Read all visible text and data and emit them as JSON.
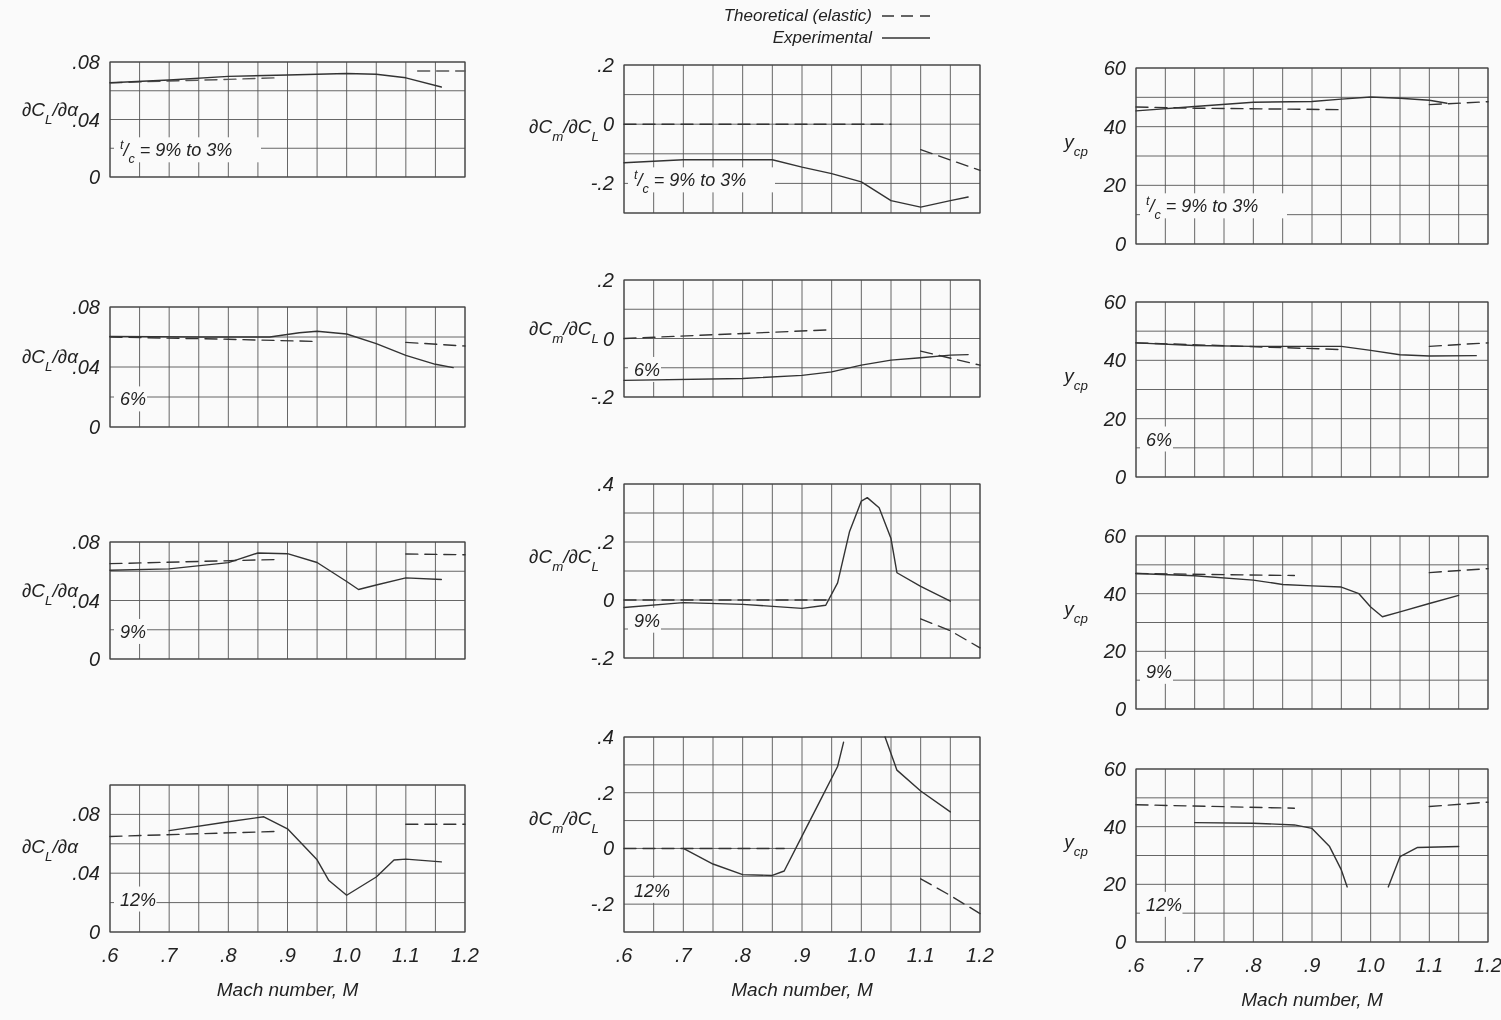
{
  "chart_data": [
    {
      "type": "line",
      "ylabel": "∂C$_{L}$/∂α",
      "xlim": [
        0.6,
        1.2
      ],
      "ylim": [
        0,
        0.08
      ],
      "tick_labels": "y",
      "grid": true,
      "annotations": [
        "$^{t}$/$_{c}$ = 9% to 3%"
      ],
      "xticks": [
        {
          "value": 0.6,
          "label": null
        },
        {
          "value": 0.65,
          "label": null
        },
        {
          "value": 0.7,
          "label": null
        },
        {
          "value": 0.75,
          "label": null
        },
        {
          "value": 0.8,
          "label": null
        },
        {
          "value": 0.85,
          "label": null
        },
        {
          "value": 0.9,
          "label": null
        },
        {
          "value": 0.95,
          "label": null
        },
        {
          "value": 1.0,
          "label": null
        },
        {
          "value": 1.05,
          "label": null
        },
        {
          "value": 1.1,
          "label": null
        },
        {
          "value": 1.15,
          "label": null
        },
        {
          "value": 1.2,
          "label": null
        }
      ],
      "yticks": [
        0,
        {
          "value": 0.02,
          "label": null
        },
        {
          "value": 0.04,
          "label": ".04"
        },
        {
          "value": 0.06,
          "label": null
        },
        {
          "value": 0.08,
          "label": ".08"
        }
      ],
      "series": [
        {
          "color": "#555555",
          "line_style": "dashed",
          "x": [
            0.6,
            0.7,
            0.8,
            0.88,
            1.0,
            1.12,
            1.2
          ],
          "values": [
            0.0655,
            0.0668,
            0.0679,
            0.069,
            null,
            0.0737,
            0.0737
          ]
        },
        {
          "color": "#333333",
          "line_style": "solid",
          "x": [
            0.6,
            0.7,
            0.8,
            0.9,
            1.0,
            1.05,
            1.1,
            1.16
          ],
          "values": [
            0.0656,
            0.0675,
            0.07,
            0.071,
            0.072,
            0.0715,
            0.069,
            0.0626
          ]
        }
      ]
    },
    {
      "type": "line",
      "ylabel": "∂C$_{m}$/∂C$_{L}$",
      "xlim": [
        0.6,
        1.2
      ],
      "ylim": [
        -0.3,
        0.2
      ],
      "tick_labels": "y",
      "grid": true,
      "legend": "top right",
      "annotations": [
        "$^{t}$/$_{c}$ = 9% to 3%"
      ],
      "xticks": [
        {
          "value": 0.6,
          "label": null
        },
        {
          "value": 0.65,
          "label": null
        },
        {
          "value": 0.7,
          "label": null
        },
        {
          "value": 0.75,
          "label": null
        },
        {
          "value": 0.8,
          "label": null
        },
        {
          "value": 0.85,
          "label": null
        },
        {
          "value": 0.9,
          "label": null
        },
        {
          "value": 0.95,
          "label": null
        },
        {
          "value": 1.0,
          "label": null
        },
        {
          "value": 1.05,
          "label": null
        },
        {
          "value": 1.1,
          "label": null
        },
        {
          "value": 1.15,
          "label": null
        },
        {
          "value": 1.2,
          "label": null
        }
      ],
      "yticks": [
        {
          "value": -0.3,
          "label": null
        },
        {
          "value": -0.2,
          "label": "-.2"
        },
        {
          "value": -0.1,
          "label": null
        },
        0,
        {
          "value": 0.1,
          "label": null
        },
        {
          "value": 0.2,
          "label": ".2"
        }
      ],
      "series": [
        {
          "name": "Theoretical (elastic)",
          "color": "#333333",
          "line_style": "dashed",
          "x": [
            0.6,
            1.05,
            1.07,
            1.1,
            1.2
          ],
          "values": [
            0,
            0,
            null,
            -0.086,
            -0.156
          ]
        },
        {
          "name": "Experimental",
          "color": "#333333",
          "line_style": "solid",
          "x": [
            0.6,
            0.7,
            0.85,
            0.9,
            0.95,
            1.0,
            1.05,
            1.1,
            1.15,
            1.18
          ],
          "values": [
            -0.13,
            -0.12,
            -0.12,
            -0.145,
            -0.167,
            -0.195,
            -0.258,
            -0.28,
            -0.258,
            -0.246
          ]
        }
      ]
    },
    {
      "type": "line",
      "ylabel": "y$_{cp}$",
      "xlim": [
        0.6,
        1.2
      ],
      "ylim": [
        0,
        60
      ],
      "tick_labels": "y",
      "grid": true,
      "annotations": [
        "$^{t}$/$_{c}$ = 9% to 3%"
      ],
      "xticks": [
        {
          "value": 0.6,
          "label": null
        },
        {
          "value": 0.65,
          "label": null
        },
        {
          "value": 0.7,
          "label": null
        },
        {
          "value": 0.75,
          "label": null
        },
        {
          "value": 0.8,
          "label": null
        },
        {
          "value": 0.85,
          "label": null
        },
        {
          "value": 0.9,
          "label": null
        },
        {
          "value": 0.95,
          "label": null
        },
        {
          "value": 1.0,
          "label": null
        },
        {
          "value": 1.05,
          "label": null
        },
        {
          "value": 1.1,
          "label": null
        },
        {
          "value": 1.15,
          "label": null
        },
        {
          "value": 1.2,
          "label": null
        }
      ],
      "yticks": [
        0,
        {
          "value": 10,
          "label": null
        },
        20,
        {
          "value": 30,
          "label": null
        },
        40,
        {
          "value": 50,
          "label": null
        },
        60
      ],
      "series": [
        {
          "color": "#333333",
          "line_style": "dashed",
          "x": [
            0.6,
            0.7,
            0.95,
            1.02,
            1.1,
            1.2
          ],
          "values": [
            46.7,
            46.3,
            45.8,
            null,
            47.5,
            48.5
          ]
        },
        {
          "color": "#333333",
          "line_style": "solid",
          "x": [
            0.6,
            0.7,
            0.8,
            0.9,
            0.95,
            1.0,
            1.05,
            1.1,
            1.13
          ],
          "values": [
            45.4,
            46.9,
            48.3,
            48.6,
            49.4,
            50.1,
            49.7,
            49,
            48
          ]
        }
      ]
    },
    {
      "type": "line",
      "ylabel": "∂C$_{L}$/∂α",
      "xlim": [
        0.6,
        1.2
      ],
      "ylim": [
        0,
        0.08
      ],
      "tick_labels": "y",
      "grid": true,
      "annotations": [
        "6%"
      ],
      "xticks": [
        {
          "value": 0.6,
          "label": null
        },
        {
          "value": 0.65,
          "label": null
        },
        {
          "value": 0.7,
          "label": null
        },
        {
          "value": 0.75,
          "label": null
        },
        {
          "value": 0.8,
          "label": null
        },
        {
          "value": 0.85,
          "label": null
        },
        {
          "value": 0.9,
          "label": null
        },
        {
          "value": 0.95,
          "label": null
        },
        {
          "value": 1.0,
          "label": null
        },
        {
          "value": 1.05,
          "label": null
        },
        {
          "value": 1.1,
          "label": null
        },
        {
          "value": 1.15,
          "label": null
        },
        {
          "value": 1.2,
          "label": null
        }
      ],
      "yticks": [
        0,
        {
          "value": 0.02,
          "label": null
        },
        {
          "value": 0.04,
          "label": ".04"
        },
        {
          "value": 0.06,
          "label": null
        },
        {
          "value": 0.08,
          "label": ".08"
        }
      ],
      "series": [
        {
          "color": "#333333",
          "line_style": "dashed",
          "x": [
            0.6,
            0.8,
            0.95,
            1.02,
            1.1,
            1.2
          ],
          "values": [
            0.06,
            0.0585,
            0.057,
            null,
            0.0564,
            0.054
          ]
        },
        {
          "color": "#333333",
          "line_style": "solid",
          "x": [
            0.6,
            0.75,
            0.87,
            0.92,
            0.95,
            1.0,
            1.05,
            1.1,
            1.15,
            1.18
          ],
          "values": [
            0.0604,
            0.06,
            0.06,
            0.0628,
            0.0638,
            0.062,
            0.0556,
            0.0478,
            0.0418,
            0.0396
          ]
        }
      ]
    },
    {
      "type": "line",
      "ylabel": "∂C$_{m}$/∂C$_{L}$",
      "xlim": [
        0.6,
        1.2
      ],
      "ylim": [
        -0.2,
        0.2
      ],
      "tick_labels": "y",
      "grid": true,
      "annotations": [
        "6%"
      ],
      "xticks": [
        {
          "value": 0.6,
          "label": null
        },
        {
          "value": 0.65,
          "label": null
        },
        {
          "value": 0.7,
          "label": null
        },
        {
          "value": 0.75,
          "label": null
        },
        {
          "value": 0.8,
          "label": null
        },
        {
          "value": 0.85,
          "label": null
        },
        {
          "value": 0.9,
          "label": null
        },
        {
          "value": 0.95,
          "label": null
        },
        {
          "value": 1.0,
          "label": null
        },
        {
          "value": 1.05,
          "label": null
        },
        {
          "value": 1.1,
          "label": null
        },
        {
          "value": 1.15,
          "label": null
        },
        {
          "value": 1.2,
          "label": null
        }
      ],
      "yticks": [
        {
          "value": -0.2,
          "label": "-.2"
        },
        {
          "value": -0.1,
          "label": null
        },
        0,
        {
          "value": 0.1,
          "label": null
        },
        {
          "value": 0.2,
          "label": ".2"
        }
      ],
      "series": [
        {
          "color": "#333333",
          "line_style": "dashed",
          "x": [
            0.6,
            0.95,
            1.02,
            1.1,
            1.2
          ],
          "values": [
            0,
            0.03,
            null,
            -0.043,
            -0.091
          ]
        },
        {
          "color": "#333333",
          "line_style": "solid",
          "x": [
            0.6,
            0.8,
            0.9,
            0.95,
            1.0,
            1.05,
            1.1,
            1.15,
            1.18
          ],
          "values": [
            -0.143,
            -0.137,
            -0.126,
            -0.114,
            -0.091,
            -0.074,
            -0.066,
            -0.057,
            -0.055
          ]
        }
      ]
    },
    {
      "type": "line",
      "ylabel": "y$_{cp}$",
      "xlim": [
        0.6,
        1.2
      ],
      "ylim": [
        0,
        60
      ],
      "tick_labels": "y",
      "grid": true,
      "annotations": [
        "6%"
      ],
      "xticks": [
        {
          "value": 0.6,
          "label": null
        },
        {
          "value": 0.65,
          "label": null
        },
        {
          "value": 0.7,
          "label": null
        },
        {
          "value": 0.75,
          "label": null
        },
        {
          "value": 0.8,
          "label": null
        },
        {
          "value": 0.85,
          "label": null
        },
        {
          "value": 0.9,
          "label": null
        },
        {
          "value": 0.95,
          "label": null
        },
        {
          "value": 1.0,
          "label": null
        },
        {
          "value": 1.05,
          "label": null
        },
        {
          "value": 1.1,
          "label": null
        },
        {
          "value": 1.15,
          "label": null
        },
        {
          "value": 1.2,
          "label": null
        }
      ],
      "yticks": [
        0,
        {
          "value": 10,
          "label": null
        },
        20,
        {
          "value": 30,
          "label": null
        },
        40,
        {
          "value": 50,
          "label": null
        },
        60
      ],
      "series": [
        {
          "color": "#333333",
          "line_style": "dashed",
          "x": [
            0.6,
            0.95,
            1.02,
            1.1,
            1.2
          ],
          "values": [
            46,
            43.7,
            null,
            44.8,
            46
          ]
        },
        {
          "color": "#333333",
          "line_style": "solid",
          "x": [
            0.6,
            0.7,
            0.8,
            0.95,
            1.0,
            1.05,
            1.1,
            1.18
          ],
          "values": [
            46,
            45.1,
            44.8,
            44.8,
            43.4,
            41.9,
            41.5,
            41.6
          ]
        }
      ]
    },
    {
      "type": "line",
      "ylabel": "∂C$_{L}$/∂α",
      "xlim": [
        0.6,
        1.2
      ],
      "ylim": [
        0,
        0.08
      ],
      "tick_labels": "y",
      "grid": true,
      "annotations": [
        "9%"
      ],
      "xticks": [
        {
          "value": 0.6,
          "label": null
        },
        {
          "value": 0.65,
          "label": null
        },
        {
          "value": 0.7,
          "label": null
        },
        {
          "value": 0.75,
          "label": null
        },
        {
          "value": 0.8,
          "label": null
        },
        {
          "value": 0.85,
          "label": null
        },
        {
          "value": 0.9,
          "label": null
        },
        {
          "value": 0.95,
          "label": null
        },
        {
          "value": 1.0,
          "label": null
        },
        {
          "value": 1.05,
          "label": null
        },
        {
          "value": 1.1,
          "label": null
        },
        {
          "value": 1.15,
          "label": null
        },
        {
          "value": 1.2,
          "label": null
        }
      ],
      "yticks": [
        0,
        {
          "value": 0.02,
          "label": null
        },
        {
          "value": 0.04,
          "label": ".04"
        },
        {
          "value": 0.06,
          "label": null
        },
        {
          "value": 0.08,
          "label": ".08"
        }
      ],
      "series": [
        {
          "color": "#333333",
          "line_style": "dashed",
          "x": [
            0.6,
            0.88,
            1.0,
            1.1,
            1.2
          ],
          "values": [
            0.0652,
            0.068,
            null,
            0.0718,
            0.0713
          ]
        },
        {
          "color": "#333333",
          "line_style": "solid",
          "x": [
            0.6,
            0.7,
            0.8,
            0.85,
            0.9,
            0.95,
            1.0,
            1.02,
            1.05,
            1.1,
            1.16
          ],
          "values": [
            0.0607,
            0.0616,
            0.0659,
            0.0725,
            0.072,
            0.066,
            0.053,
            0.0475,
            0.0506,
            0.0555,
            0.0544
          ]
        }
      ]
    },
    {
      "type": "line",
      "ylabel": "∂C$_{m}$/∂C$_{L}$",
      "xlim": [
        0.6,
        1.2
      ],
      "ylim": [
        -0.2,
        0.4
      ],
      "tick_labels": "y",
      "grid": true,
      "annotations": [
        "9%"
      ],
      "xticks": [
        {
          "value": 0.6,
          "label": null
        },
        {
          "value": 0.65,
          "label": null
        },
        {
          "value": 0.7,
          "label": null
        },
        {
          "value": 0.75,
          "label": null
        },
        {
          "value": 0.8,
          "label": null
        },
        {
          "value": 0.85,
          "label": null
        },
        {
          "value": 0.9,
          "label": null
        },
        {
          "value": 0.95,
          "label": null
        },
        {
          "value": 1.0,
          "label": null
        },
        {
          "value": 1.05,
          "label": null
        },
        {
          "value": 1.1,
          "label": null
        },
        {
          "value": 1.15,
          "label": null
        },
        {
          "value": 1.2,
          "label": null
        }
      ],
      "yticks": [
        {
          "value": -0.2,
          "label": "-.2"
        },
        {
          "value": -0.1,
          "label": null
        },
        0,
        {
          "value": 0.1,
          "label": null
        },
        {
          "value": 0.2,
          "label": ".2"
        },
        {
          "value": 0.3,
          "label": null
        },
        {
          "value": 0.4,
          "label": ".4"
        }
      ],
      "series": [
        {
          "color": "#333333",
          "line_style": "dashed",
          "x": [
            0.6,
            0.95,
            1.02,
            1.1,
            1.15,
            1.2
          ],
          "values": [
            0,
            0,
            null,
            -0.065,
            -0.106,
            -0.165
          ]
        },
        {
          "color": "#333333",
          "line_style": "solid",
          "x": [
            0.6,
            0.7,
            0.8,
            0.9,
            0.94,
            0.96,
            0.98,
            1.0,
            1.01,
            1.03,
            1.05,
            1.06,
            1.1,
            1.15
          ],
          "values": [
            -0.026,
            -0.009,
            -0.015,
            -0.029,
            -0.018,
            0.059,
            0.235,
            0.341,
            0.353,
            0.318,
            0.212,
            0.094,
            0.047,
            -0.004
          ]
        }
      ]
    },
    {
      "type": "line",
      "ylabel": "y$_{cp}$",
      "xlim": [
        0.6,
        1.2
      ],
      "ylim": [
        0,
        60
      ],
      "tick_labels": "y",
      "grid": true,
      "annotations": [
        "9%"
      ],
      "xticks": [
        {
          "value": 0.6,
          "label": null
        },
        {
          "value": 0.65,
          "label": null
        },
        {
          "value": 0.7,
          "label": null
        },
        {
          "value": 0.75,
          "label": null
        },
        {
          "value": 0.8,
          "label": null
        },
        {
          "value": 0.85,
          "label": null
        },
        {
          "value": 0.9,
          "label": null
        },
        {
          "value": 0.95,
          "label": null
        },
        {
          "value": 1.0,
          "label": null
        },
        {
          "value": 1.05,
          "label": null
        },
        {
          "value": 1.1,
          "label": null
        },
        {
          "value": 1.15,
          "label": null
        },
        {
          "value": 1.2,
          "label": null
        }
      ],
      "yticks": [
        0,
        {
          "value": 10,
          "label": null
        },
        20,
        {
          "value": 30,
          "label": null
        },
        40,
        {
          "value": 50,
          "label": null
        },
        60
      ],
      "series": [
        {
          "color": "#333333",
          "line_style": "dashed",
          "x": [
            0.6,
            0.87,
            1.0,
            1.1,
            1.2
          ],
          "values": [
            47,
            46.3,
            null,
            47.3,
            48.7
          ]
        },
        {
          "color": "#333333",
          "line_style": "solid",
          "x": [
            0.6,
            0.7,
            0.8,
            0.85,
            0.9,
            0.95,
            0.98,
            1.0,
            1.02,
            1.05,
            1.1,
            1.15
          ],
          "values": [
            47,
            46.2,
            44.7,
            43.2,
            42.7,
            42.3,
            40,
            35.4,
            32,
            33.7,
            36.6,
            39.4
          ]
        }
      ]
    },
    {
      "type": "line",
      "ylabel": "∂C$_{L}$/∂α",
      "xlabel": "Mach number, M",
      "xlim": [
        0.6,
        1.2
      ],
      "ylim": [
        0,
        0.1
      ],
      "grid": true,
      "annotations": [
        "12%"
      ],
      "xticks": [
        {
          "value": 0.6,
          "label": ".6"
        },
        {
          "value": 0.65,
          "label": null
        },
        {
          "value": 0.7,
          "label": ".7"
        },
        {
          "value": 0.75,
          "label": null
        },
        {
          "value": 0.8,
          "label": ".8"
        },
        {
          "value": 0.85,
          "label": null
        },
        {
          "value": 0.9,
          "label": ".9"
        },
        {
          "value": 0.95,
          "label": null
        },
        {
          "value": 1.0,
          "label": "1.0"
        },
        {
          "value": 1.05,
          "label": null
        },
        {
          "value": 1.1,
          "label": "1.1"
        },
        {
          "value": 1.15,
          "label": null
        },
        {
          "value": 1.2,
          "label": "1.2"
        }
      ],
      "yticks": [
        0,
        {
          "value": 0.02,
          "label": null
        },
        {
          "value": 0.04,
          "label": ".04"
        },
        {
          "value": 0.06,
          "label": null
        },
        {
          "value": 0.08,
          "label": ".08"
        },
        {
          "value": 0.1,
          "label": null
        }
      ],
      "series": [
        {
          "color": "#333333",
          "line_style": "dashed",
          "x": [
            0.6,
            0.88,
            1.0,
            1.1,
            1.2
          ],
          "values": [
            0.065,
            0.0684,
            null,
            0.0733,
            0.0733
          ]
        },
        {
          "color": "#333333",
          "line_style": "solid",
          "x": [
            0.7,
            0.8,
            0.86,
            0.9,
            0.95,
            0.97,
            1.0,
            1.05,
            1.08,
            1.1,
            1.16
          ],
          "values": [
            0.069,
            0.075,
            0.0784,
            0.0702,
            0.0491,
            0.035,
            0.025,
            0.0374,
            0.049,
            0.0496,
            0.0477
          ]
        }
      ]
    },
    {
      "type": "line",
      "ylabel": "∂C$_{m}$/∂C$_{L}$",
      "xlabel": "Mach number, M",
      "xlim": [
        0.6,
        1.2
      ],
      "ylim": [
        -0.3,
        0.4
      ],
      "grid": true,
      "annotations": [
        "12%"
      ],
      "xticks": [
        {
          "value": 0.6,
          "label": ".6"
        },
        {
          "value": 0.65,
          "label": null
        },
        {
          "value": 0.7,
          "label": ".7"
        },
        {
          "value": 0.75,
          "label": null
        },
        {
          "value": 0.8,
          "label": ".8"
        },
        {
          "value": 0.85,
          "label": null
        },
        {
          "value": 0.9,
          "label": ".9"
        },
        {
          "value": 0.95,
          "label": null
        },
        {
          "value": 1.0,
          "label": "1.0"
        },
        {
          "value": 1.05,
          "label": null
        },
        {
          "value": 1.1,
          "label": "1.1"
        },
        {
          "value": 1.15,
          "label": null
        },
        {
          "value": 1.2,
          "label": "1.2"
        }
      ],
      "yticks": [
        {
          "value": -0.3,
          "label": null
        },
        {
          "value": -0.2,
          "label": "-.2"
        },
        {
          "value": -0.1,
          "label": null
        },
        0,
        {
          "value": 0.1,
          "label": null
        },
        {
          "value": 0.2,
          "label": ".2"
        },
        {
          "value": 0.3,
          "label": null
        },
        {
          "value": 0.4,
          "label": ".4"
        }
      ],
      "series": [
        {
          "color": "#333333",
          "line_style": "dashed",
          "x": [
            0.6,
            0.87,
            1.0,
            1.1,
            1.15,
            1.2
          ],
          "values": [
            0,
            0,
            null,
            -0.109,
            -0.169,
            -0.234
          ]
        },
        {
          "color": "#333333",
          "line_style": "solid",
          "x": [
            0.7,
            0.75,
            0.8,
            0.85,
            0.87,
            0.9,
            0.93,
            0.96,
            0.97,
            1.0,
            1.04,
            1.06,
            1.1,
            1.15
          ],
          "values": [
            0,
            -0.056,
            -0.094,
            -0.097,
            -0.081,
            0.044,
            0.169,
            0.294,
            0.381,
            null,
            0.4,
            0.281,
            0.206,
            0.131
          ]
        }
      ]
    },
    {
      "type": "line",
      "ylabel": "y$_{cp}$",
      "xlabel": "Mach number, M",
      "xlim": [
        0.6,
        1.2
      ],
      "ylim": [
        0,
        60
      ],
      "grid": true,
      "annotations": [
        "12%"
      ],
      "xticks": [
        {
          "value": 0.6,
          "label": ".6"
        },
        {
          "value": 0.65,
          "label": null
        },
        {
          "value": 0.7,
          "label": ".7"
        },
        {
          "value": 0.75,
          "label": null
        },
        {
          "value": 0.8,
          "label": ".8"
        },
        {
          "value": 0.85,
          "label": null
        },
        {
          "value": 0.9,
          "label": ".9"
        },
        {
          "value": 0.95,
          "label": null
        },
        {
          "value": 1.0,
          "label": "1.0"
        },
        {
          "value": 1.05,
          "label": null
        },
        {
          "value": 1.1,
          "label": "1.1"
        },
        {
          "value": 1.15,
          "label": null
        },
        {
          "value": 1.2,
          "label": "1.2"
        }
      ],
      "yticks": [
        0,
        {
          "value": 10,
          "label": null
        },
        20,
        {
          "value": 30,
          "label": null
        },
        40,
        {
          "value": 50,
          "label": null
        },
        60
      ],
      "series": [
        {
          "color": "#333333",
          "line_style": "dashed",
          "x": [
            0.6,
            0.87,
            1.0,
            1.1,
            1.2
          ],
          "values": [
            47.6,
            46.4,
            null,
            47,
            48.5
          ]
        },
        {
          "color": "#333333",
          "line_style": "solid",
          "x": [
            0.7,
            0.8,
            0.87,
            0.9,
            0.93,
            0.95,
            0.96,
            1.0,
            1.03,
            1.05,
            1.08,
            1.15
          ],
          "values": [
            41.4,
            41.2,
            40.6,
            39.4,
            33.1,
            25,
            19.1,
            null,
            19.1,
            29.6,
            32.8,
            33.1
          ]
        }
      ]
    }
  ]
}
